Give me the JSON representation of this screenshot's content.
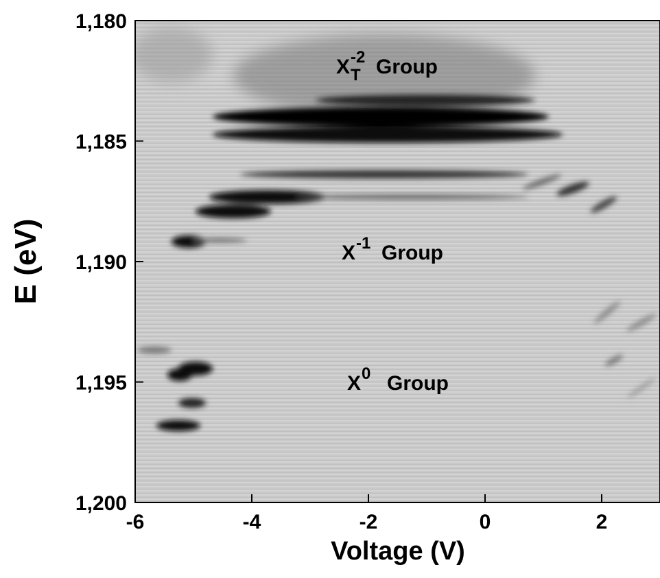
{
  "chart_data": {
    "type": "heatmap",
    "xlabel": "Voltage (V)",
    "ylabel": "E (eV)",
    "xlim": [
      -6,
      3
    ],
    "xticks": [
      -6,
      -4,
      -2,
      0,
      2
    ],
    "ylim": [
      1180,
      1200
    ],
    "y_inverted": true,
    "yticks": [
      {
        "value": 1180,
        "label": "1,180"
      },
      {
        "value": 1185,
        "label": "1,185"
      },
      {
        "value": 1190,
        "label": "1,190"
      },
      {
        "value": 1195,
        "label": "1,195"
      },
      {
        "value": 1200,
        "label": "1,200"
      }
    ],
    "annotations": [
      {
        "base": "X",
        "sup": "-2",
        "sub": "T",
        "text": "Group"
      },
      {
        "base": "X",
        "sup": "-1",
        "text": "Group"
      },
      {
        "base": "X",
        "sup": "0",
        "text": "Group"
      }
    ]
  }
}
